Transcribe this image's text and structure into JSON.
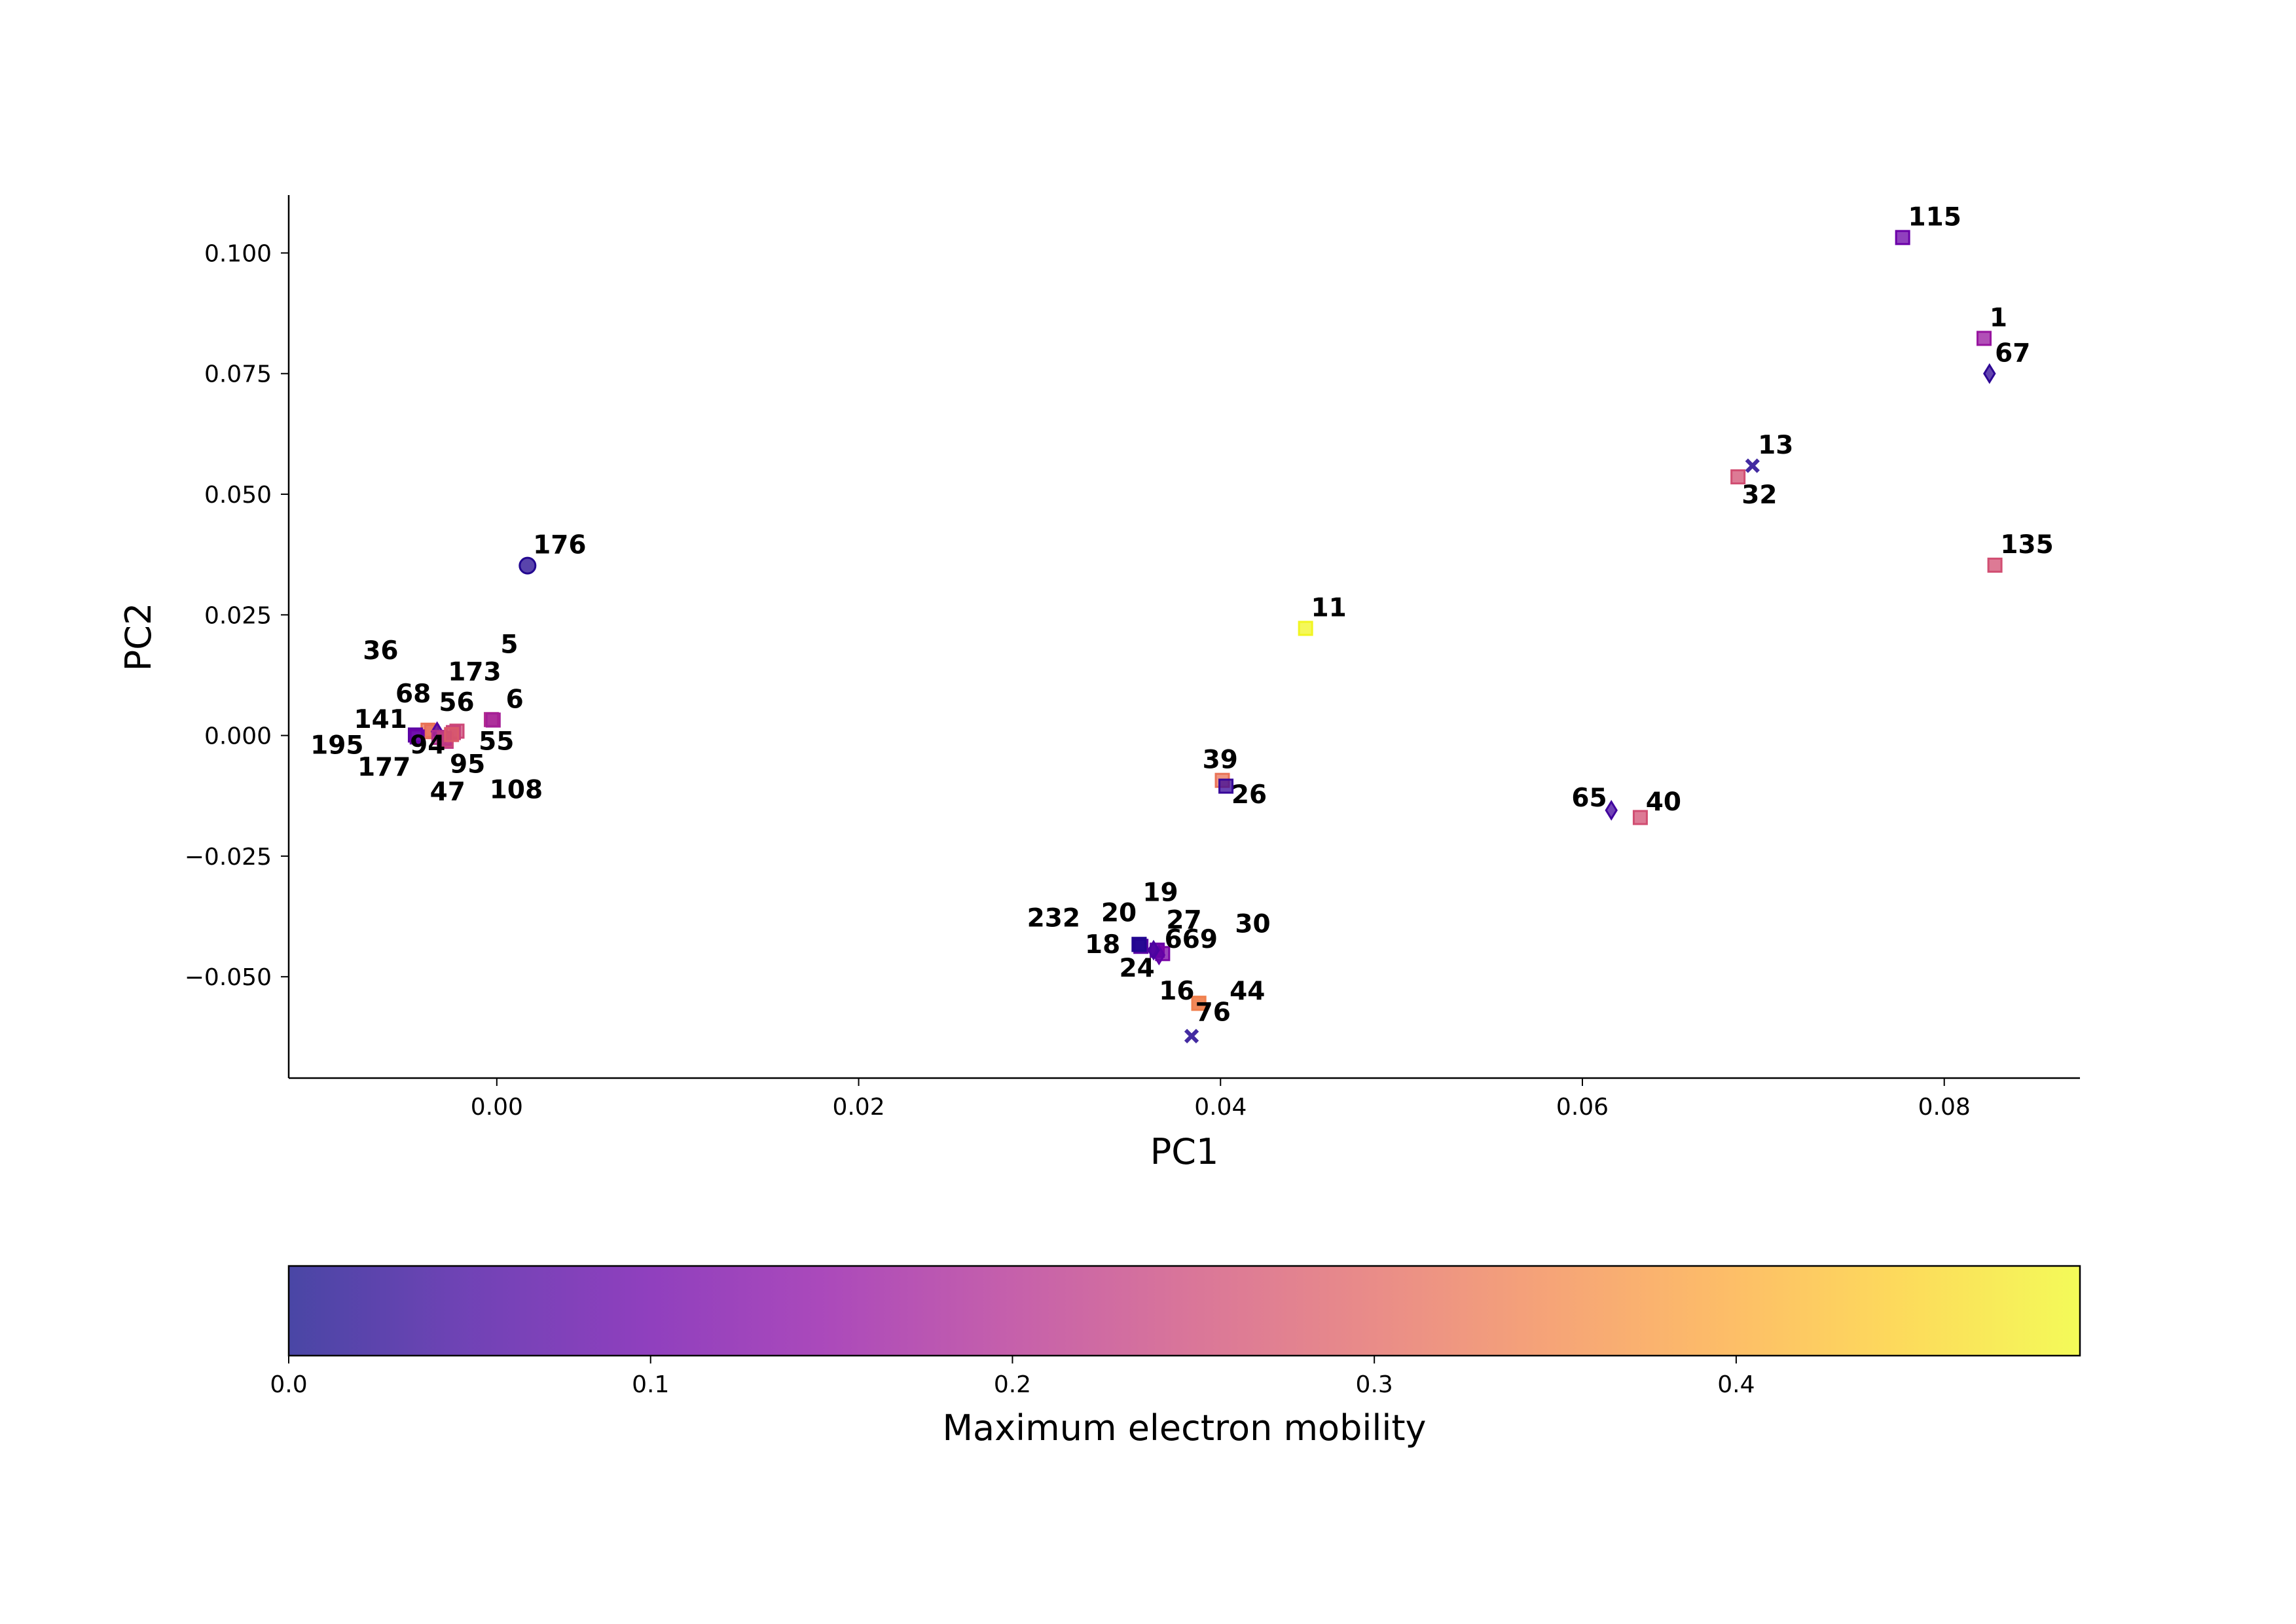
{
  "chart_data": {
    "type": "scatter",
    "xlabel": "PC1",
    "ylabel": "PC2",
    "xlim": [
      -0.0115,
      0.0875
    ],
    "ylim": [
      -0.071,
      0.112
    ],
    "x_ticks": [
      0.0,
      0.02,
      0.04,
      0.06,
      0.08
    ],
    "x_tick_labels": [
      "0.00",
      "0.02",
      "0.04",
      "0.06",
      "0.08"
    ],
    "y_ticks": [
      -0.05,
      -0.025,
      0.0,
      0.025,
      0.05,
      0.075,
      0.1
    ],
    "y_tick_labels": [
      "−0.050",
      "−0.025",
      "0.000",
      "0.025",
      "0.050",
      "0.075",
      "0.100"
    ],
    "grid": false,
    "colorbar": {
      "label": "Maximum electron mobility",
      "colormap": "plasma",
      "range": [
        0.0,
        0.495
      ],
      "ticks": [
        0.0,
        0.1,
        0.2,
        0.3,
        0.4
      ],
      "tick_labels": [
        "0.0",
        "0.1",
        "0.2",
        "0.3",
        "0.4"
      ],
      "colors": [
        "#0d0887",
        "#41049d",
        "#6a00a8",
        "#8f0da4",
        "#b12a90",
        "#cc4778",
        "#e16462",
        "#f2844b",
        "#fca636",
        "#fcce25",
        "#f0f921"
      ]
    },
    "points": [
      {
        "label": "115",
        "x": 0.0777,
        "y": 0.1032,
        "value": 0.1,
        "marker": "square",
        "label_dx": 0.0003,
        "label_dy": 0.0025
      },
      {
        "label": "1",
        "x": 0.0822,
        "y": 0.0823,
        "value": 0.16,
        "marker": "square",
        "label_dx": 0.0003,
        "label_dy": 0.0025
      },
      {
        "label": "67",
        "x": 0.0825,
        "y": 0.075,
        "value": 0.03,
        "marker": "diamond",
        "label_dx": 0.0003,
        "label_dy": 0.0025
      },
      {
        "label": "13",
        "x": 0.0694,
        "y": 0.0559,
        "value": 0.02,
        "marker": "x",
        "label_dx": 0.0003,
        "label_dy": 0.0025
      },
      {
        "label": "32",
        "x": 0.0686,
        "y": 0.0536,
        "value": 0.26,
        "marker": "square",
        "label_dx": 0.0002,
        "label_dy": -0.0055
      },
      {
        "label": "135",
        "x": 0.0828,
        "y": 0.0353,
        "value": 0.26,
        "marker": "square",
        "label_dx": 0.0003,
        "label_dy": 0.0025
      },
      {
        "label": "176",
        "x": 0.0017,
        "y": 0.0352,
        "value": 0.02,
        "marker": "circle",
        "label_dx": 0.0003,
        "label_dy": 0.0025
      },
      {
        "label": "11",
        "x": 0.0447,
        "y": 0.0222,
        "value": 0.49,
        "marker": "square",
        "label_dx": 0.0003,
        "label_dy": 0.0025
      },
      {
        "label": "36",
        "x": -0.0036,
        "y": 0.0008,
        "value": 0.3,
        "marker": "square",
        "label_dx": -0.0038,
        "label_dy": 0.015
      },
      {
        "label": "5",
        "x": -0.0003,
        "y": 0.0033,
        "value": 0.2,
        "marker": "square",
        "label_dx": 0.0005,
        "label_dy": 0.0138
      },
      {
        "label": "173",
        "x": -0.0022,
        "y": 0.0009,
        "value": 0.25,
        "marker": "square",
        "label_dx": -0.0005,
        "label_dy": 0.0105
      },
      {
        "label": "68",
        "x": -0.0038,
        "y": 0.0011,
        "value": 0.32,
        "marker": "square",
        "label_dx": -0.0018,
        "label_dy": 0.0058
      },
      {
        "label": "56",
        "x": -0.0024,
        "y": 0.0006,
        "value": 0.24,
        "marker": "square",
        "label_dx": -0.0008,
        "label_dy": 0.0045
      },
      {
        "label": "6",
        "x": -0.0002,
        "y": 0.0032,
        "value": 0.18,
        "marker": "square",
        "label_dx": 0.0007,
        "label_dy": 0.0025
      },
      {
        "label": "141",
        "x": -0.0045,
        "y": 0.0001,
        "value": 0.08,
        "marker": "square",
        "label_dx": -0.0034,
        "label_dy": 0.0015
      },
      {
        "label": "195",
        "x": -0.0044,
        "y": -0.0003,
        "value": 0.1,
        "marker": "square",
        "label_dx": -0.0059,
        "label_dy": -0.0035
      },
      {
        "label": "94",
        "x": -0.0033,
        "y": 0.0008,
        "value": 0.07,
        "marker": "diamond",
        "label_dx": -0.0015,
        "label_dy": -0.0045
      },
      {
        "label": "55",
        "x": -0.0028,
        "y": -0.0012,
        "value": 0.22,
        "marker": "square",
        "label_dx": 0.0018,
        "label_dy": -0.0018
      },
      {
        "label": "177",
        "x": -0.0032,
        "y": -0.0004,
        "value": 0.2,
        "marker": "square",
        "label_dx": -0.0045,
        "label_dy": -0.0079
      },
      {
        "label": "95",
        "x": -0.0028,
        "y": -0.0009,
        "value": 0.25,
        "marker": "square",
        "label_dx": 0.0002,
        "label_dy": -0.0068
      },
      {
        "label": "47",
        "x": -0.0029,
        "y": -0.0006,
        "value": 0.22,
        "marker": "square",
        "label_dx": -0.0008,
        "label_dy": -0.0128
      },
      {
        "label": "108",
        "x": -0.0025,
        "y": 0.0002,
        "value": 0.28,
        "marker": "square",
        "label_dx": 0.0021,
        "label_dy": -0.0132
      },
      {
        "label": "39",
        "x": 0.0401,
        "y": -0.0093,
        "value": 0.32,
        "marker": "square",
        "label_dx": -0.0011,
        "label_dy": 0.0025
      },
      {
        "label": "26",
        "x": 0.0403,
        "y": -0.0105,
        "value": 0.04,
        "marker": "square",
        "label_dx": 0.0003,
        "label_dy": -0.0035
      },
      {
        "label": "65",
        "x": 0.0616,
        "y": -0.0155,
        "value": 0.05,
        "marker": "diamond",
        "label_dx": -0.0022,
        "label_dy": 0.0008
      },
      {
        "label": "40",
        "x": 0.0632,
        "y": -0.017,
        "value": 0.26,
        "marker": "square",
        "label_dx": 0.0003,
        "label_dy": 0.0015
      },
      {
        "label": "19",
        "x": 0.0365,
        "y": -0.0445,
        "value": 0.1,
        "marker": "square",
        "label_dx": -0.0008,
        "label_dy": 0.0102
      },
      {
        "label": "20",
        "x": 0.0356,
        "y": -0.0437,
        "value": 0.08,
        "marker": "square",
        "label_dx": -0.0022,
        "label_dy": 0.0052
      },
      {
        "label": "232",
        "x": 0.0355,
        "y": -0.0433,
        "value": 0.02,
        "marker": "square",
        "label_dx": -0.0062,
        "label_dy": 0.0037
      },
      {
        "label": "27",
        "x": 0.0365,
        "y": -0.0445,
        "value": 0.1,
        "marker": "square",
        "label_dx": 0.0005,
        "label_dy": 0.0045
      },
      {
        "label": "30",
        "x": 0.0368,
        "y": -0.0452,
        "value": 0.12,
        "marker": "square",
        "label_dx": 0.004,
        "label_dy": 0.0044
      },
      {
        "label": "18",
        "x": 0.0355,
        "y": -0.0433,
        "value": 0.02,
        "marker": "square",
        "label_dx": -0.003,
        "label_dy": -0.0018
      },
      {
        "label": "669",
        "x": 0.0366,
        "y": -0.0455,
        "value": 0.09,
        "marker": "diamond",
        "label_dx": 0.0003,
        "label_dy": 0.0015
      },
      {
        "label": "24",
        "x": 0.0363,
        "y": -0.0445,
        "value": 0.06,
        "marker": "diamond",
        "label_dx": -0.0019,
        "label_dy": -0.0055
      },
      {
        "label": "16",
        "x": 0.0388,
        "y": -0.0555,
        "value": 0.34,
        "marker": "square",
        "label_dx": -0.0022,
        "label_dy": 0.0008
      },
      {
        "label": "44",
        "x": 0.0388,
        "y": -0.0555,
        "value": 0.34,
        "marker": "square",
        "label_dx": 0.0017,
        "label_dy": 0.0008
      },
      {
        "label": "76",
        "x": 0.0384,
        "y": -0.0623,
        "value": 0.02,
        "marker": "x",
        "label_dx": 0.0002,
        "label_dy": 0.0032
      }
    ]
  }
}
